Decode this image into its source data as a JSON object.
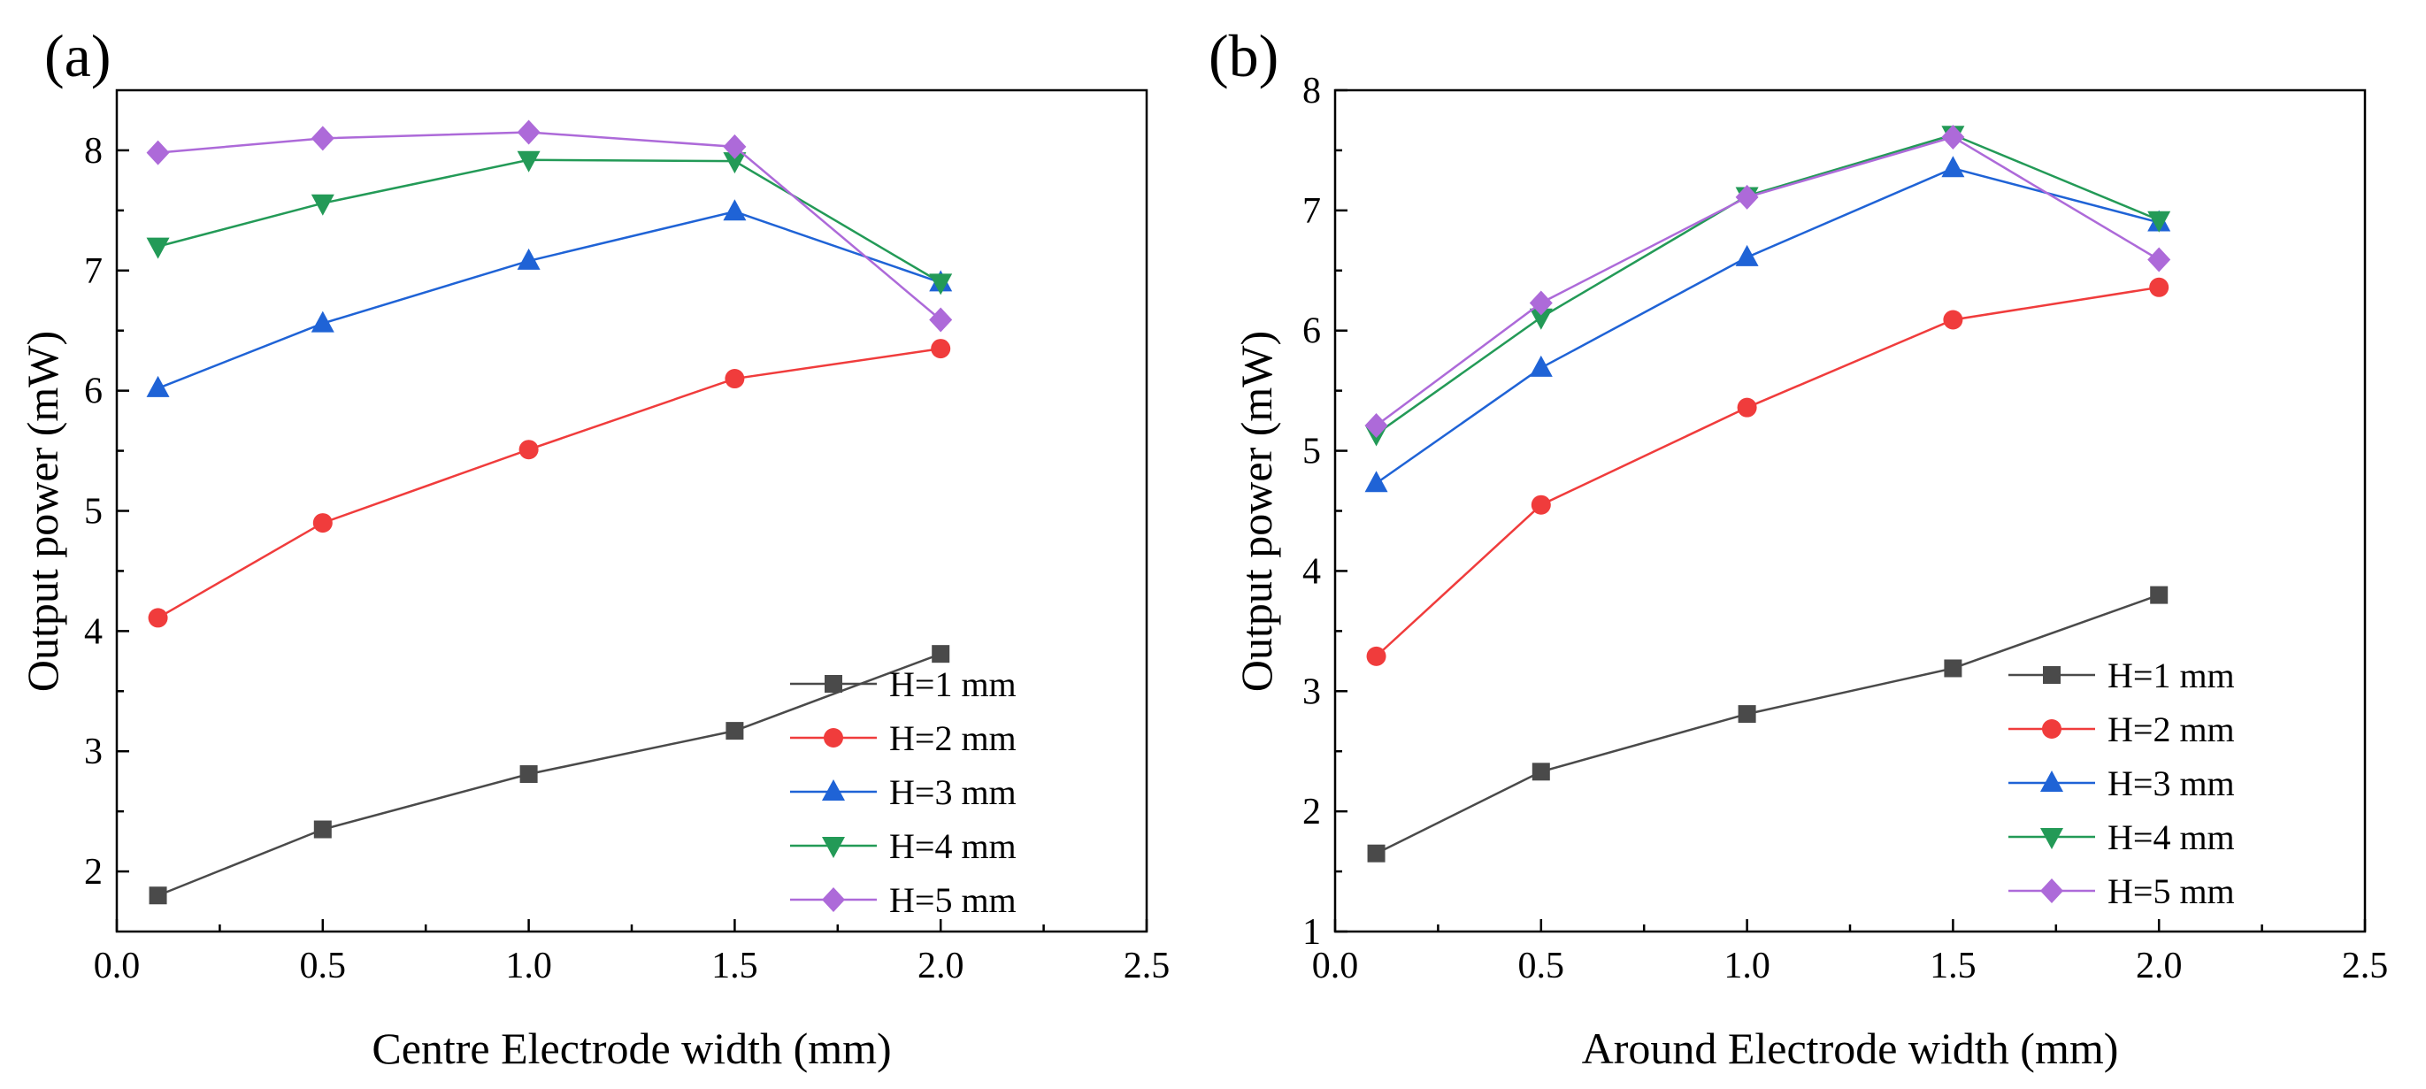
{
  "chart_data": [
    {
      "type": "line",
      "panel_label": "(a)",
      "xlabel": "Centre Electrode width (mm)",
      "ylabel": "Output power (mW)",
      "xlim": [
        0.0,
        2.5
      ],
      "ylim": [
        1.5,
        8.5
      ],
      "xticks": [
        0.0,
        0.5,
        1.0,
        1.5,
        2.0,
        2.5
      ],
      "xtick_labels": [
        "0.0",
        "0.5",
        "1.0",
        "1.5",
        "2.0",
        "2.5"
      ],
      "yticks": [
        2,
        3,
        4,
        5,
        6,
        7,
        8
      ],
      "ytick_labels": [
        "2",
        "3",
        "4",
        "5",
        "6",
        "7",
        "8"
      ],
      "legend_position": "bottom-right",
      "x": [
        0.1,
        0.5,
        1.0,
        1.5,
        2.0
      ],
      "series": [
        {
          "name": "H=1 mm",
          "color": "#4a4a4a",
          "marker": "square",
          "values": [
            1.8,
            2.35,
            2.81,
            3.17,
            3.81
          ]
        },
        {
          "name": "H=2 mm",
          "color": "#f03c3c",
          "marker": "circle",
          "values": [
            4.11,
            4.9,
            5.51,
            6.1,
            6.35
          ]
        },
        {
          "name": "H=3 mm",
          "color": "#1f63d6",
          "marker": "triangle-up",
          "values": [
            6.02,
            6.56,
            7.08,
            7.49,
            6.9
          ]
        },
        {
          "name": "H=4 mm",
          "color": "#239a57",
          "marker": "triangle-down",
          "values": [
            7.2,
            7.56,
            7.92,
            7.91,
            6.9
          ]
        },
        {
          "name": "H=5 mm",
          "color": "#ad6ad9",
          "marker": "diamond",
          "values": [
            7.98,
            8.1,
            8.15,
            8.03,
            6.59
          ]
        }
      ]
    },
    {
      "type": "line",
      "panel_label": "(b)",
      "xlabel": "Around Electrode width (mm)",
      "ylabel": "Output power (mW)",
      "xlim": [
        0.0,
        2.5
      ],
      "ylim": [
        1.0,
        8.0
      ],
      "xticks": [
        0.0,
        0.5,
        1.0,
        1.5,
        2.0,
        2.5
      ],
      "xtick_labels": [
        "0.0",
        "0.5",
        "1.0",
        "1.5",
        "2.0",
        "2.5"
      ],
      "yticks": [
        1,
        2,
        3,
        4,
        5,
        6,
        7,
        8
      ],
      "ytick_labels": [
        "1",
        "2",
        "3",
        "4",
        "5",
        "6",
        "7",
        "8"
      ],
      "legend_position": "bottom-right",
      "x": [
        0.1,
        0.5,
        1.0,
        1.5,
        2.0
      ],
      "series": [
        {
          "name": "H=1 mm",
          "color": "#4a4a4a",
          "marker": "square",
          "values": [
            1.65,
            2.33,
            2.81,
            3.19,
            3.8
          ]
        },
        {
          "name": "H=2 mm",
          "color": "#f03c3c",
          "marker": "circle",
          "values": [
            3.29,
            4.55,
            5.36,
            6.09,
            6.36
          ]
        },
        {
          "name": "H=3 mm",
          "color": "#1f63d6",
          "marker": "triangle-up",
          "values": [
            4.73,
            5.69,
            6.61,
            7.35,
            6.9
          ]
        },
        {
          "name": "H=4 mm",
          "color": "#239a57",
          "marker": "triangle-down",
          "values": [
            5.14,
            6.11,
            7.12,
            7.63,
            6.92
          ]
        },
        {
          "name": "H=5 mm",
          "color": "#ad6ad9",
          "marker": "diamond",
          "values": [
            5.21,
            6.23,
            7.11,
            7.61,
            6.59
          ]
        }
      ]
    }
  ]
}
